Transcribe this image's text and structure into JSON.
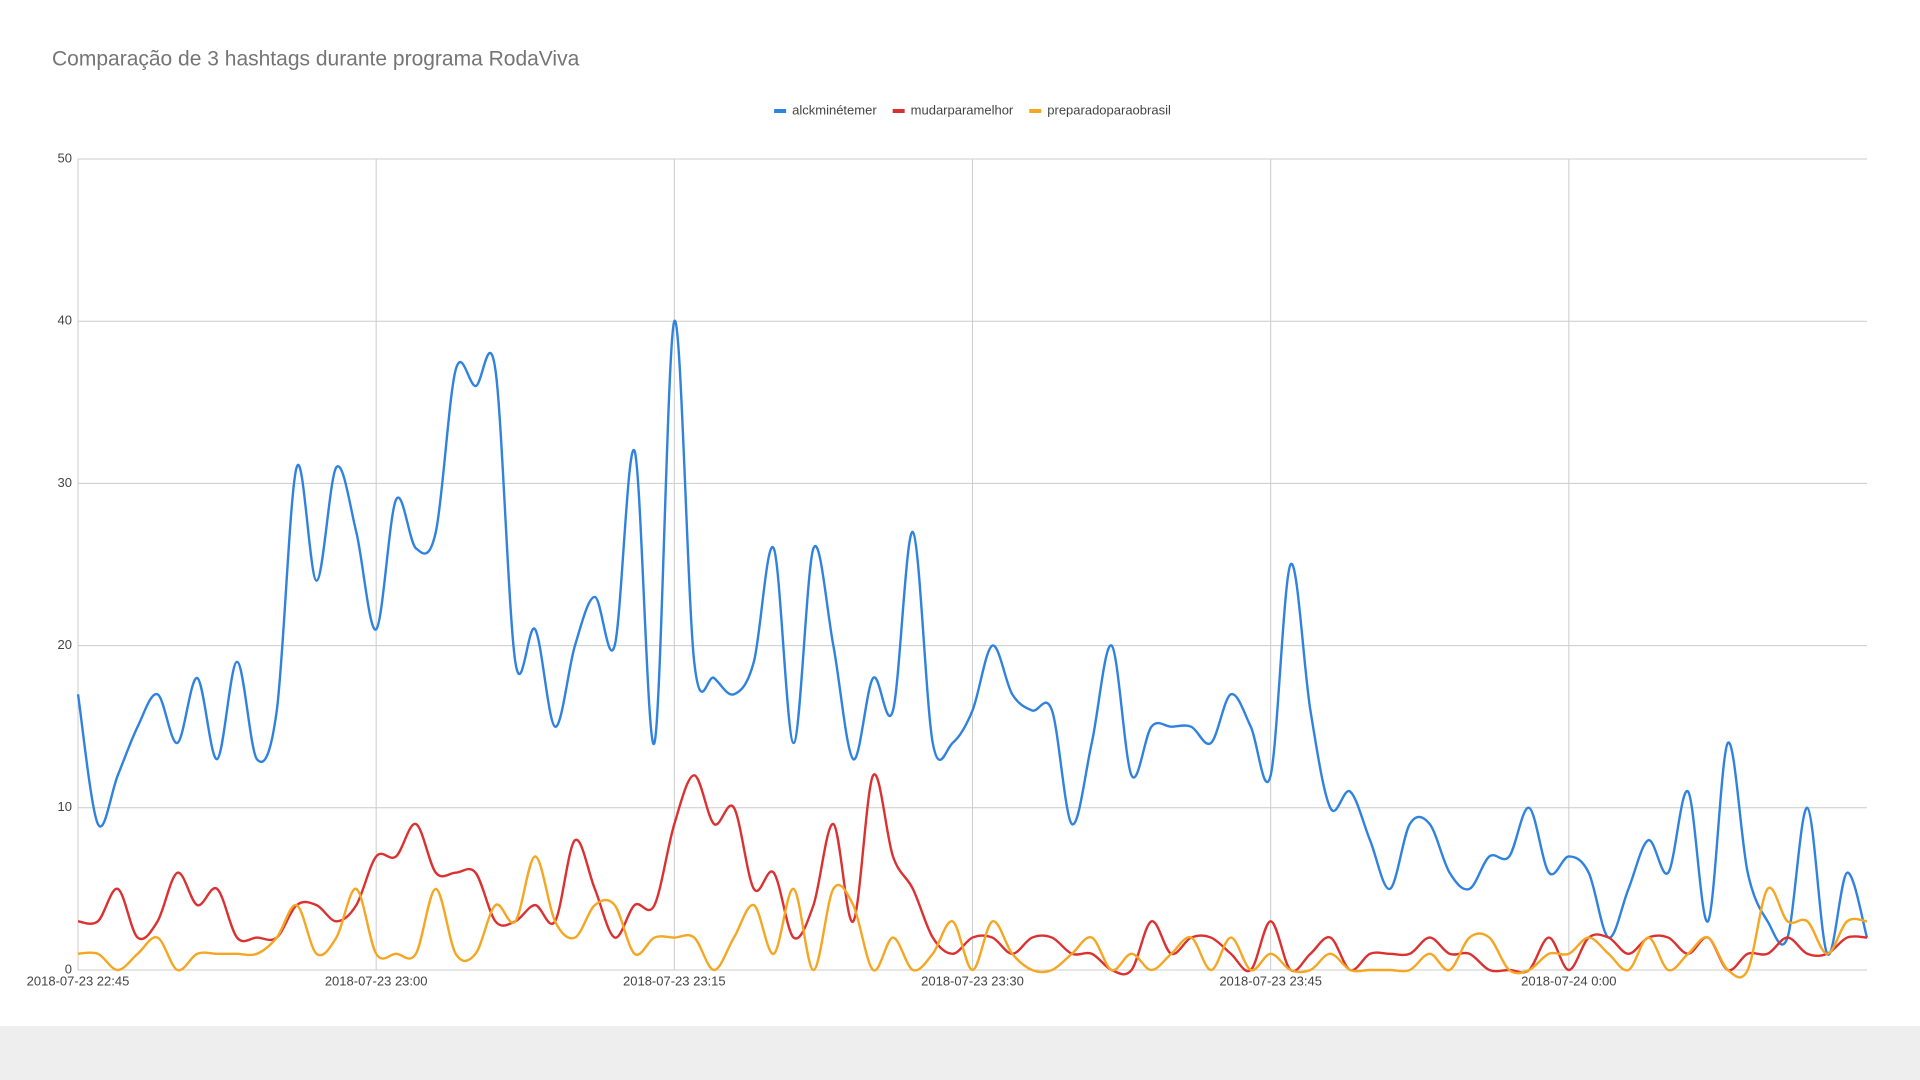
{
  "chart_data": {
    "type": "line",
    "title": "Comparação de 3 hashtags durante programa RodaViva",
    "x": [
      "2018-07-23 22:45",
      "2018-07-23 22:46",
      "2018-07-23 22:47",
      "2018-07-23 22:48",
      "2018-07-23 22:49",
      "2018-07-23 22:50",
      "2018-07-23 22:51",
      "2018-07-23 22:52",
      "2018-07-23 22:53",
      "2018-07-23 22:54",
      "2018-07-23 22:55",
      "2018-07-23 22:56",
      "2018-07-23 22:57",
      "2018-07-23 22:58",
      "2018-07-23 22:59",
      "2018-07-23 23:00",
      "2018-07-23 23:01",
      "2018-07-23 23:02",
      "2018-07-23 23:03",
      "2018-07-23 23:04",
      "2018-07-23 23:05",
      "2018-07-23 23:06",
      "2018-07-23 23:07",
      "2018-07-23 23:08",
      "2018-07-23 23:09",
      "2018-07-23 23:10",
      "2018-07-23 23:11",
      "2018-07-23 23:12",
      "2018-07-23 23:13",
      "2018-07-23 23:14",
      "2018-07-23 23:15",
      "2018-07-23 23:16",
      "2018-07-23 23:17",
      "2018-07-23 23:18",
      "2018-07-23 23:19",
      "2018-07-23 23:20",
      "2018-07-23 23:21",
      "2018-07-23 23:22",
      "2018-07-23 23:23",
      "2018-07-23 23:24",
      "2018-07-23 23:25",
      "2018-07-23 23:26",
      "2018-07-23 23:27",
      "2018-07-23 23:28",
      "2018-07-23 23:29",
      "2018-07-23 23:30",
      "2018-07-23 23:31",
      "2018-07-23 23:32",
      "2018-07-23 23:33",
      "2018-07-23 23:34",
      "2018-07-23 23:35",
      "2018-07-23 23:36",
      "2018-07-23 23:37",
      "2018-07-23 23:38",
      "2018-07-23 23:39",
      "2018-07-23 23:40",
      "2018-07-23 23:41",
      "2018-07-23 23:42",
      "2018-07-23 23:43",
      "2018-07-23 23:44",
      "2018-07-23 23:45",
      "2018-07-23 23:46",
      "2018-07-23 23:47",
      "2018-07-23 23:48",
      "2018-07-23 23:49",
      "2018-07-23 23:50",
      "2018-07-23 23:51",
      "2018-07-23 23:52",
      "2018-07-23 23:53",
      "2018-07-23 23:54",
      "2018-07-23 23:55",
      "2018-07-23 23:56",
      "2018-07-23 23:57",
      "2018-07-23 23:58",
      "2018-07-23 23:59",
      "2018-07-24 0:00",
      "2018-07-24 0:01",
      "2018-07-24 0:02",
      "2018-07-24 0:03",
      "2018-07-24 0:04",
      "2018-07-24 0:05",
      "2018-07-24 0:06",
      "2018-07-24 0:07",
      "2018-07-24 0:08",
      "2018-07-24 0:09",
      "2018-07-24 0:10",
      "2018-07-24 0:11",
      "2018-07-24 0:12",
      "2018-07-24 0:13",
      "2018-07-24 0:14",
      "2018-07-24 0:15"
    ],
    "series": [
      {
        "name": "alckminétemer",
        "color": "#3082e0",
        "values": [
          17,
          9,
          12,
          15,
          17,
          14,
          18,
          13,
          19,
          13,
          16,
          31,
          24,
          31,
          27,
          21,
          29,
          26,
          27,
          37,
          36,
          37,
          19,
          21,
          15,
          20,
          23,
          20,
          32,
          14,
          40,
          19,
          18,
          17,
          19,
          26,
          14,
          26,
          20,
          13,
          18,
          16,
          27,
          14,
          14,
          16,
          20,
          17,
          16,
          16,
          9,
          14,
          20,
          12,
          15,
          15,
          15,
          14,
          17,
          15,
          12,
          25,
          16,
          10,
          11,
          8,
          5,
          9,
          9,
          6,
          5,
          7,
          7,
          10,
          6,
          7,
          6,
          2,
          5,
          8,
          6,
          11,
          3,
          14,
          6,
          3,
          2,
          10,
          1,
          6,
          2
        ]
      },
      {
        "name": "mudarparamelhor",
        "color": "#db3131",
        "values": [
          3,
          3,
          5,
          2,
          3,
          6,
          4,
          5,
          2,
          2,
          2,
          4,
          4,
          3,
          4,
          7,
          7,
          9,
          6,
          6,
          6,
          3,
          3,
          4,
          3,
          8,
          5,
          2,
          4,
          4,
          9,
          12,
          9,
          10,
          5,
          6,
          2,
          4,
          9,
          3,
          12,
          7,
          5,
          2,
          1,
          2,
          2,
          1,
          2,
          2,
          1,
          1,
          0,
          0,
          3,
          1,
          2,
          2,
          1,
          0,
          3,
          0,
          1,
          2,
          0,
          1,
          1,
          1,
          2,
          1,
          1,
          0,
          0,
          0,
          2,
          0,
          2,
          2,
          1,
          2,
          2,
          1,
          2,
          0,
          1,
          1,
          2,
          1,
          1,
          2,
          2
        ]
      },
      {
        "name": "preparadoparaobrasil",
        "color": "#f5a623",
        "values": [
          1,
          1,
          0,
          1,
          2,
          0,
          1,
          1,
          1,
          1,
          2,
          4,
          1,
          2,
          5,
          1,
          1,
          1,
          5,
          1,
          1,
          4,
          3,
          7,
          3,
          2,
          4,
          4,
          1,
          2,
          2,
          2,
          0,
          2,
          4,
          1,
          5,
          0,
          5,
          4,
          0,
          2,
          0,
          1,
          3,
          0,
          3,
          1,
          0,
          0,
          1,
          2,
          0,
          1,
          0,
          1,
          2,
          0,
          2,
          0,
          1,
          0,
          0,
          1,
          0,
          0,
          0,
          0,
          1,
          0,
          2,
          2,
          0,
          0,
          1,
          1,
          2,
          1,
          0,
          2,
          0,
          1,
          2,
          0,
          0,
          5,
          3,
          3,
          1,
          3,
          3
        ]
      }
    ],
    "xlim": [
      "2018-07-23 22:45",
      "2018-07-24 0:15"
    ],
    "xticks": [
      "2018-07-23 22:45",
      "2018-07-23 23:00",
      "2018-07-23 23:15",
      "2018-07-23 23:30",
      "2018-07-23 23:45",
      "2018-07-24 0:00"
    ],
    "ylim": [
      0,
      50
    ],
    "yticks": [
      0,
      10,
      20,
      30,
      40,
      50
    ],
    "grid": true,
    "legend": "top"
  }
}
